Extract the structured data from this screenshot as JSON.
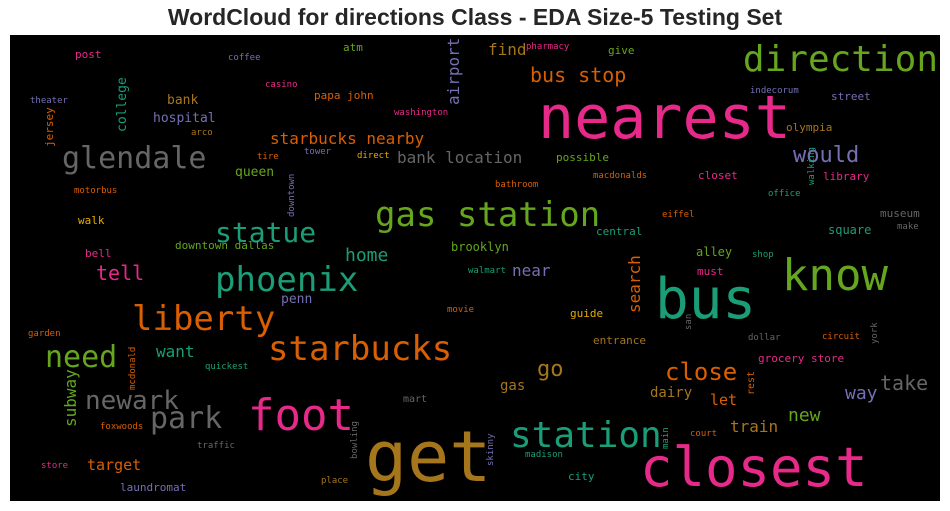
{
  "chart_data": {
    "type": "wordcloud",
    "title": "WordCloud for directions Class - EDA Size-5 Testing Set",
    "background": "#000000",
    "palette": [
      "#e7298a",
      "#66a61e",
      "#1b9e77",
      "#d95f02",
      "#a6761d",
      "#7570b3",
      "#666666",
      "#e6ab02"
    ],
    "words": [
      {
        "text": "nearest",
        "weight": 60,
        "color": "#e7298a"
      },
      {
        "text": "get",
        "weight": 70,
        "color": "#a6761d"
      },
      {
        "text": "bus",
        "weight": 56,
        "color": "#1b9e77"
      },
      {
        "text": "closest",
        "weight": 54,
        "color": "#e7298a"
      },
      {
        "text": "know",
        "weight": 44,
        "color": "#66a61e"
      },
      {
        "text": "foot",
        "weight": 44,
        "color": "#e7298a"
      },
      {
        "text": "direction",
        "weight": 36,
        "color": "#66a61e"
      },
      {
        "text": "station",
        "weight": 36,
        "color": "#1b9e77"
      },
      {
        "text": "gas station",
        "weight": 34,
        "color": "#66a61e"
      },
      {
        "text": "phoenix",
        "weight": 34,
        "color": "#1b9e77"
      },
      {
        "text": "starbucks",
        "weight": 34,
        "color": "#d95f02"
      },
      {
        "text": "liberty",
        "weight": 34,
        "color": "#d95f02"
      },
      {
        "text": "glendale",
        "weight": 30,
        "color": "#666666"
      },
      {
        "text": "need",
        "weight": 30,
        "color": "#66a61e"
      },
      {
        "text": "park",
        "weight": 30,
        "color": "#666666"
      },
      {
        "text": "statue",
        "weight": 28,
        "color": "#1b9e77"
      },
      {
        "text": "newark",
        "weight": 26,
        "color": "#666666"
      },
      {
        "text": "close",
        "weight": 24,
        "color": "#d95f02"
      },
      {
        "text": "would",
        "weight": 22,
        "color": "#7570b3"
      },
      {
        "text": "go",
        "weight": 22,
        "color": "#a6761d"
      },
      {
        "text": "bus stop",
        "weight": 20,
        "color": "#d95f02"
      },
      {
        "text": "tell",
        "weight": 20,
        "color": "#e7298a"
      },
      {
        "text": "take",
        "weight": 20,
        "color": "#666666"
      },
      {
        "text": "home",
        "weight": 18,
        "color": "#1b9e77"
      },
      {
        "text": "way",
        "weight": 18,
        "color": "#7570b3"
      },
      {
        "text": "new",
        "weight": 18,
        "color": "#66a61e"
      },
      {
        "text": "starbucks nearby",
        "weight": 16,
        "color": "#d95f02"
      },
      {
        "text": "bank location",
        "weight": 16,
        "color": "#666666"
      },
      {
        "text": "near",
        "weight": 16,
        "color": "#7570b3"
      },
      {
        "text": "search",
        "weight": 16,
        "color": "#d95f02"
      },
      {
        "text": "find",
        "weight": 16,
        "color": "#a6761d"
      },
      {
        "text": "airport",
        "weight": 16,
        "color": "#7570b3"
      },
      {
        "text": "subway",
        "weight": 16,
        "color": "#66a61e"
      },
      {
        "text": "want",
        "weight": 16,
        "color": "#1b9e77"
      },
      {
        "text": "train",
        "weight": 16,
        "color": "#a6761d"
      },
      {
        "text": "target",
        "weight": 15,
        "color": "#d95f02"
      },
      {
        "text": "let",
        "weight": 15,
        "color": "#d95f02"
      },
      {
        "text": "dairy",
        "weight": 14,
        "color": "#a6761d"
      },
      {
        "text": "gas",
        "weight": 14,
        "color": "#a6761d"
      },
      {
        "text": "queen",
        "weight": 13,
        "color": "#66a61e"
      },
      {
        "text": "college",
        "weight": 13,
        "color": "#1b9e77"
      },
      {
        "text": "bank",
        "weight": 13,
        "color": "#a6761d"
      },
      {
        "text": "hospital",
        "weight": 13,
        "color": "#7570b3"
      },
      {
        "text": "penn",
        "weight": 13,
        "color": "#7570b3"
      },
      {
        "text": "brooklyn",
        "weight": 12,
        "color": "#66a61e"
      },
      {
        "text": "alley",
        "weight": 12,
        "color": "#66a61e"
      },
      {
        "text": "square",
        "weight": 12,
        "color": "#1b9e77"
      },
      {
        "text": "library",
        "weight": 11,
        "color": "#e7298a"
      },
      {
        "text": "street",
        "weight": 11,
        "color": "#7570b3"
      },
      {
        "text": "olympia",
        "weight": 11,
        "color": "#a6761d"
      },
      {
        "text": "museum",
        "weight": 11,
        "color": "#666666"
      },
      {
        "text": "central",
        "weight": 11,
        "color": "#1b9e77"
      },
      {
        "text": "downtown dallas",
        "weight": 11,
        "color": "#66a61e"
      },
      {
        "text": "possible",
        "weight": 11,
        "color": "#66a61e"
      },
      {
        "text": "closet",
        "weight": 11,
        "color": "#e7298a"
      },
      {
        "text": "give",
        "weight": 11,
        "color": "#66a61e"
      },
      {
        "text": "must",
        "weight": 11,
        "color": "#e7298a"
      },
      {
        "text": "guide",
        "weight": 11,
        "color": "#e6ab02"
      },
      {
        "text": "entrance",
        "weight": 11,
        "color": "#a6761d"
      },
      {
        "text": "grocery store",
        "weight": 11,
        "color": "#e7298a"
      },
      {
        "text": "laundromat",
        "weight": 11,
        "color": "#7570b3"
      },
      {
        "text": "city",
        "weight": 11,
        "color": "#1b9e77"
      },
      {
        "text": "walk",
        "weight": 11,
        "color": "#e6ab02"
      },
      {
        "text": "bell",
        "weight": 11,
        "color": "#e7298a"
      },
      {
        "text": "jersey",
        "weight": 11,
        "color": "#d95f02"
      },
      {
        "text": "post",
        "weight": 11,
        "color": "#e7298a"
      },
      {
        "text": "atm",
        "weight": 11,
        "color": "#66a61e"
      },
      {
        "text": "papa john",
        "weight": 11,
        "color": "#d95f02"
      },
      {
        "text": "rest",
        "weight": 10,
        "color": "#d95f02"
      },
      {
        "text": "mart",
        "weight": 10,
        "color": "#666666"
      },
      {
        "text": "court",
        "weight": 9,
        "color": "#d95f02"
      },
      {
        "text": "main",
        "weight": 9,
        "color": "#1b9e77"
      },
      {
        "text": "skinny",
        "weight": 9,
        "color": "#7570b3"
      },
      {
        "text": "madison",
        "weight": 9,
        "color": "#1b9e77"
      },
      {
        "text": "place",
        "weight": 9,
        "color": "#a6761d"
      },
      {
        "text": "traffic",
        "weight": 9,
        "color": "#666666"
      },
      {
        "text": "foxwoods",
        "weight": 9,
        "color": "#d95f02"
      },
      {
        "text": "store",
        "weight": 9,
        "color": "#e7298a"
      },
      {
        "text": "garden",
        "weight": 9,
        "color": "#d95f02"
      },
      {
        "text": "quickest",
        "weight": 9,
        "color": "#1b9e77"
      },
      {
        "text": "mcdonald",
        "weight": 9,
        "color": "#d95f02"
      },
      {
        "text": "motorbus",
        "weight": 9,
        "color": "#d95f02"
      },
      {
        "text": "theater",
        "weight": 9,
        "color": "#7570b3"
      },
      {
        "text": "coffee",
        "weight": 9,
        "color": "#7570b3"
      },
      {
        "text": "casino",
        "weight": 9,
        "color": "#e7298a"
      },
      {
        "text": "arco",
        "weight": 9,
        "color": "#a6761d"
      },
      {
        "text": "tire",
        "weight": 9,
        "color": "#d95f02"
      },
      {
        "text": "tower",
        "weight": 9,
        "color": "#7570b3"
      },
      {
        "text": "direct",
        "weight": 9,
        "color": "#e6ab02"
      },
      {
        "text": "downtown",
        "weight": 9,
        "color": "#7570b3"
      },
      {
        "text": "washington",
        "weight": 9,
        "color": "#e7298a"
      },
      {
        "text": "pharmacy",
        "weight": 9,
        "color": "#e7298a"
      },
      {
        "text": "indecorum",
        "weight": 9,
        "color": "#7570b3"
      },
      {
        "text": "bathroom",
        "weight": 9,
        "color": "#d95f02"
      },
      {
        "text": "macdonalds",
        "weight": 9,
        "color": "#d95f02"
      },
      {
        "text": "eiffel",
        "weight": 9,
        "color": "#d95f02"
      },
      {
        "text": "office",
        "weight": 9,
        "color": "#1b9e77"
      },
      {
        "text": "walking",
        "weight": 9,
        "color": "#1b9e77"
      },
      {
        "text": "make",
        "weight": 9,
        "color": "#666666"
      },
      {
        "text": "walmart",
        "weight": 9,
        "color": "#1b9e77"
      },
      {
        "text": "shop",
        "weight": 9,
        "color": "#1b9e77"
      },
      {
        "text": "movie",
        "weight": 9,
        "color": "#d95f02"
      },
      {
        "text": "san",
        "weight": 9,
        "color": "#666666"
      },
      {
        "text": "dollar",
        "weight": 9,
        "color": "#666666"
      },
      {
        "text": "circuit",
        "weight": 9,
        "color": "#d95f02"
      },
      {
        "text": "york",
        "weight": 9,
        "color": "#666666"
      },
      {
        "text": "bowling",
        "weight": 9,
        "color": "#666666"
      }
    ]
  }
}
